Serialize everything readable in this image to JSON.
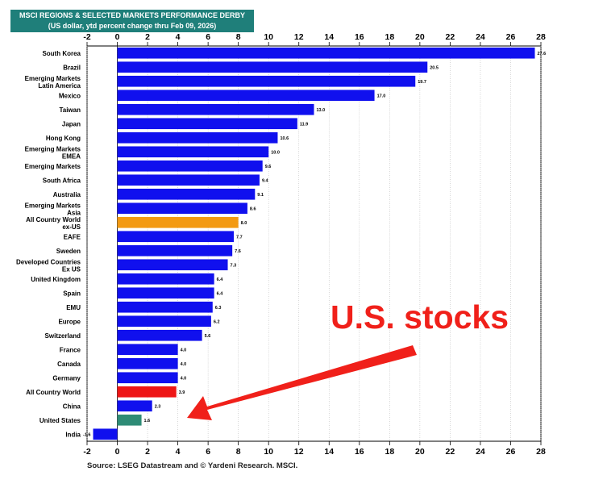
{
  "chart_data": {
    "type": "bar",
    "orientation": "horizontal",
    "title": "MSCI REGIONS & SELECTED MARKETS PERFORMANCE DERBY",
    "subtitle": "(US dollar, ytd percent change thru Feb 09, 2026)",
    "xlim": [
      -2,
      28
    ],
    "xticks": [
      "-2",
      "0",
      "2",
      "4",
      "6",
      "8",
      "10",
      "12",
      "14",
      "16",
      "18",
      "20",
      "22",
      "24",
      "26",
      "28"
    ],
    "grid": true,
    "categories": [
      [
        "South Korea"
      ],
      [
        "Brazil"
      ],
      [
        "Emerging Markets",
        "Latin America"
      ],
      [
        "Mexico"
      ],
      [
        "Taiwan"
      ],
      [
        "Japan"
      ],
      [
        "Hong Kong"
      ],
      [
        "Emerging Markets",
        "EMEA"
      ],
      [
        "Emerging Markets"
      ],
      [
        "South Africa"
      ],
      [
        "Australia"
      ],
      [
        "Emerging Markets",
        "Asia"
      ],
      [
        "All Country World",
        "ex-US"
      ],
      [
        "EAFE"
      ],
      [
        "Sweden"
      ],
      [
        "Developed Countries",
        "Ex US"
      ],
      [
        "United Kingdom"
      ],
      [
        "Spain"
      ],
      [
        "EMU"
      ],
      [
        "Europe"
      ],
      [
        "Switzerland"
      ],
      [
        "France"
      ],
      [
        "Canada"
      ],
      [
        "Germany"
      ],
      [
        "All Country World"
      ],
      [
        "China"
      ],
      [
        "United States"
      ],
      [
        "India"
      ]
    ],
    "values": [
      27.6,
      20.5,
      19.7,
      17.0,
      13.0,
      11.9,
      10.6,
      10.0,
      9.6,
      9.4,
      9.1,
      8.6,
      8.0,
      7.7,
      7.6,
      7.3,
      6.4,
      6.4,
      6.3,
      6.2,
      5.6,
      4.0,
      4.0,
      4.0,
      3.9,
      2.3,
      1.6,
      -1.6
    ],
    "labels": [
      "27.6",
      "20.5",
      "19.7",
      "17.0",
      "13.0",
      "11.9",
      "10.6",
      "10.0",
      "9.6",
      "9.4",
      "9.1",
      "8.6",
      "8.0",
      "7.7",
      "7.6",
      "7.3",
      "6.4",
      "6.4",
      "6.3",
      "6.2",
      "5.6",
      "4.0",
      "4.0",
      "4.0",
      "3.9",
      "2.3",
      "1.6",
      "-1.6"
    ],
    "colors": [
      "#1010ee",
      "#1010ee",
      "#1010ee",
      "#1010ee",
      "#1010ee",
      "#1010ee",
      "#1010ee",
      "#1010ee",
      "#1010ee",
      "#1010ee",
      "#1010ee",
      "#1010ee",
      "#f39a12",
      "#1010ee",
      "#1010ee",
      "#1010ee",
      "#1010ee",
      "#1010ee",
      "#1010ee",
      "#1010ee",
      "#1010ee",
      "#1010ee",
      "#1010ee",
      "#1010ee",
      "#ee1515",
      "#1010ee",
      "#2e8b76",
      "#1010ee"
    ]
  },
  "source": "Source: LSEG Datastream and © Yardeni Research. MSCI.",
  "annotation": {
    "text": "U.S. stocks",
    "color": "#f0201a",
    "points_to": "United States"
  }
}
